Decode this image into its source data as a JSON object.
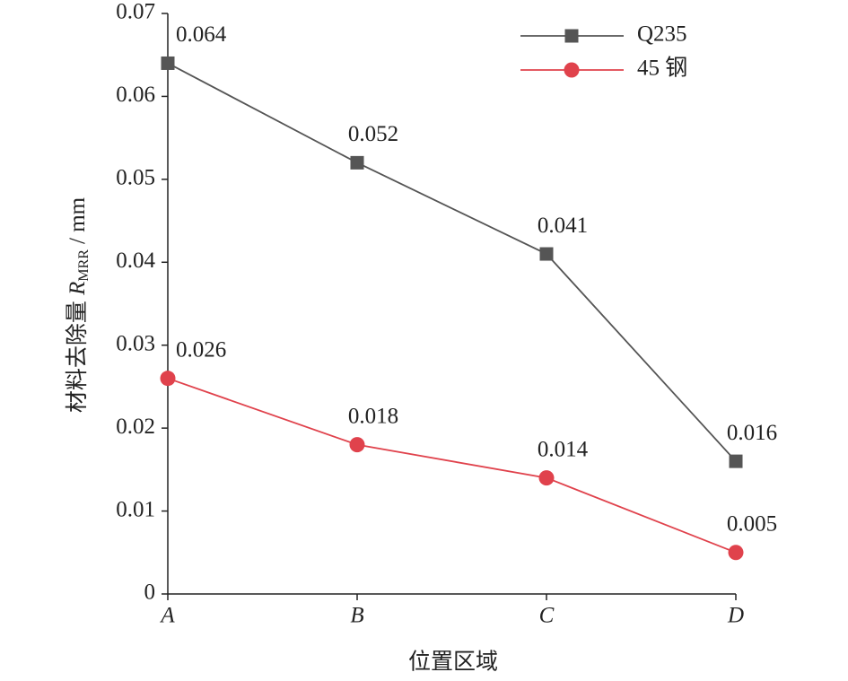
{
  "chart_data": {
    "type": "line",
    "x_label": "位置区域",
    "y_label": {
      "text": "材料去除量",
      "symbol": "R",
      "subscript": "MRR",
      "unit": "/ mm"
    },
    "categories": [
      "A",
      "B",
      "C",
      "D"
    ],
    "series": [
      {
        "name": "Q235",
        "color": "#555555",
        "marker": "square",
        "values": [
          0.064,
          0.052,
          0.041,
          0.016
        ]
      },
      {
        "name": "45 钢",
        "color": "#e0424c",
        "marker": "circle",
        "values": [
          0.026,
          0.018,
          0.014,
          0.005
        ]
      }
    ],
    "ylim": [
      0,
      0.07
    ],
    "yticks": [
      0,
      0.01,
      0.02,
      0.03,
      0.04,
      0.05,
      0.06,
      0.07
    ],
    "legend": "upper right"
  }
}
